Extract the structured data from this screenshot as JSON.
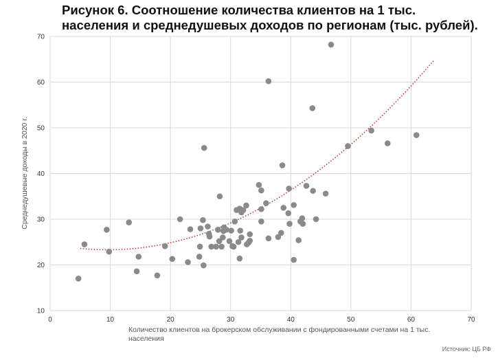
{
  "chart_data": {
    "type": "scatter",
    "title_line1": "Рисунок 6. Соотношение количества клиентов на 1 тыс.",
    "title_line2": "населения и среднедушевых доходов по регионам (тыс. рублей).",
    "xlabel": "Количество клиентов на брокерском обслуживании с фондированными счетами на 1 тыс. населения",
    "ylabel": "Среднедушевые доходы в 2020 г.",
    "source": "Источник: ЦБ РФ",
    "xlim": [
      0,
      70
    ],
    "ylim": [
      10,
      70
    ],
    "xticks": [
      "0",
      "10",
      "20",
      "30",
      "40",
      "50",
      "60",
      "70"
    ],
    "yticks": [
      "10",
      "20",
      "30",
      "40",
      "50",
      "60",
      "70"
    ],
    "grid": true,
    "point_color": "#8a8a8a",
    "trend_color": "#c0392b",
    "trend": {
      "type": "polynomial",
      "x_range": [
        5,
        63.8
      ],
      "coefficients": [
        24.6,
        -0.27,
        0.0141
      ]
    },
    "points": [
      [
        4.7,
        17
      ],
      [
        5.7,
        24.5
      ],
      [
        9.4,
        27.7
      ],
      [
        9.8,
        22.9
      ],
      [
        13.1,
        29.3
      ],
      [
        14.4,
        18.6
      ],
      [
        14.7,
        21.8
      ],
      [
        17.8,
        17.7
      ],
      [
        19.1,
        24.1
      ],
      [
        20.3,
        21.3
      ],
      [
        21.6,
        30
      ],
      [
        22.9,
        20.6
      ],
      [
        23.3,
        27.8
      ],
      [
        24.8,
        21.8
      ],
      [
        24.9,
        24
      ],
      [
        25,
        28
      ],
      [
        25.4,
        29.8
      ],
      [
        25.5,
        19.9
      ],
      [
        25.6,
        45.6
      ],
      [
        26.2,
        28.4
      ],
      [
        26.4,
        26.8
      ],
      [
        26.5,
        26.2
      ],
      [
        26.8,
        24
      ],
      [
        27.6,
        24
      ],
      [
        27.9,
        27.7
      ],
      [
        28.1,
        25.2
      ],
      [
        28.2,
        35
      ],
      [
        28.5,
        24
      ],
      [
        28.7,
        26
      ],
      [
        28.8,
        27.4
      ],
      [
        28.9,
        28.2
      ],
      [
        29.3,
        27.7
      ],
      [
        29.8,
        25.2
      ],
      [
        30.1,
        27.5
      ],
      [
        30.3,
        24.1
      ],
      [
        30.5,
        24
      ],
      [
        30.7,
        29.5
      ],
      [
        31,
        32
      ],
      [
        31.3,
        25
      ],
      [
        31.5,
        21.4
      ],
      [
        31.5,
        32.3
      ],
      [
        31.6,
        27.5
      ],
      [
        31.8,
        26
      ],
      [
        31.8,
        31.5
      ],
      [
        32.1,
        32
      ],
      [
        32.6,
        33
      ],
      [
        32.7,
        24.5
      ],
      [
        33,
        24.9
      ],
      [
        33.2,
        26.7
      ],
      [
        33.2,
        25.3
      ],
      [
        34.7,
        37.5
      ],
      [
        35.1,
        32.2
      ],
      [
        35.1,
        36.3
      ],
      [
        35.1,
        29.5
      ],
      [
        35.9,
        33.5
      ],
      [
        36.3,
        60.2
      ],
      [
        36.3,
        25.8
      ],
      [
        37.9,
        26.1
      ],
      [
        38.4,
        27
      ],
      [
        38.6,
        41.8
      ],
      [
        38.8,
        32.5
      ],
      [
        39.6,
        31.3
      ],
      [
        39.7,
        36.7
      ],
      [
        39.8,
        29
      ],
      [
        40.5,
        21.1
      ],
      [
        40.5,
        33.1
      ],
      [
        41.3,
        25.4
      ],
      [
        41.6,
        29.5
      ],
      [
        41.9,
        30.2
      ],
      [
        42,
        29
      ],
      [
        42.6,
        37.3
      ],
      [
        43.6,
        54.3
      ],
      [
        43.7,
        36.2
      ],
      [
        44.2,
        30
      ],
      [
        45.8,
        35.6
      ],
      [
        46.7,
        68.2
      ],
      [
        49.5,
        46
      ],
      [
        53.4,
        49.4
      ],
      [
        56.1,
        46.6
      ],
      [
        60.9,
        48.4
      ]
    ]
  }
}
